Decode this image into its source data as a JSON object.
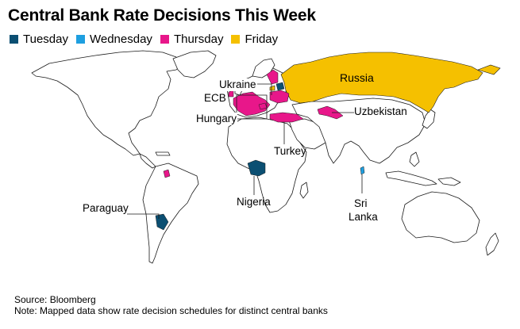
{
  "title": "Central Bank Rate Decisions This Week",
  "legend": [
    {
      "label": "Tuesday",
      "color": "#0b4f72"
    },
    {
      "label": "Wednesday",
      "color": "#1e9fe0"
    },
    {
      "label": "Thursday",
      "color": "#e8178a"
    },
    {
      "label": "Friday",
      "color": "#f5c000"
    }
  ],
  "labels": {
    "russia": "Russia",
    "ukraine": "Ukraine",
    "ecb": "ECB",
    "hungary": "Hungary",
    "uzbekistan": "Uzbekistan",
    "turkey": "Turkey",
    "nigeria": "Nigeria",
    "paraguay": "Paraguay",
    "sri": "Sri",
    "lanka": "Lanka"
  },
  "footer": {
    "source": "Source: Bloomberg",
    "note": "Note: Mapped data show rate decision schedules for distinct central banks"
  }
}
